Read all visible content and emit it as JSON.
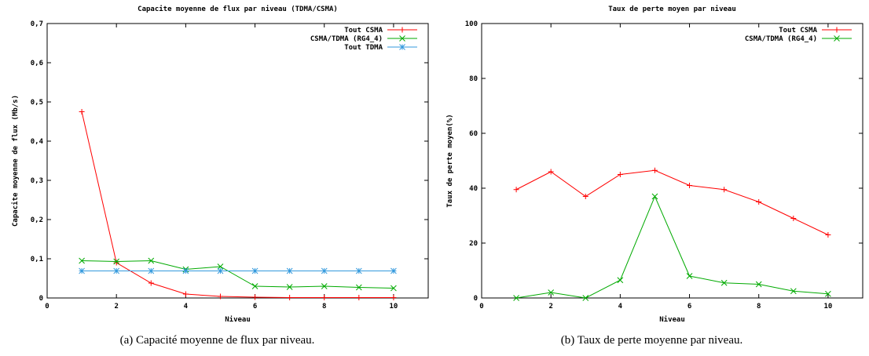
{
  "captions": {
    "a": "(a)  Capacité moyenne de flux par niveau.",
    "b": "(b)  Taux de perte moyenne par niveau."
  },
  "chart_data": [
    {
      "type": "line",
      "title": "Capacite moyenne de flux par niveau (TDMA/CSMA)",
      "xlabel": "Niveau",
      "ylabel": "Capacite moyenne de flux (Mb/s)",
      "xlim": [
        0,
        11
      ],
      "ylim": [
        0,
        0.7
      ],
      "xticks": [
        0,
        2,
        4,
        6,
        8,
        10
      ],
      "yticks": [
        0,
        0.1,
        0.2,
        0.3,
        0.4,
        0.5,
        0.6,
        0.7
      ],
      "ytick_labels": [
        "0",
        "0,1",
        "0,2",
        "0,3",
        "0,4",
        "0,5",
        "0,6",
        "0,7"
      ],
      "grid": false,
      "legend_position": "top-right",
      "series": [
        {
          "name": "Tout CSMA",
          "color": "#ff0000",
          "marker": "plus",
          "x": [
            1,
            2,
            3,
            4,
            5,
            6,
            7,
            8,
            9,
            10
          ],
          "y": [
            0.475,
            0.09,
            0.038,
            0.01,
            0.004,
            0.002,
            0.001,
            0.001,
            0.001,
            0.001
          ]
        },
        {
          "name": "CSMA/TDMA (RG4_4)",
          "color": "#00aa00",
          "marker": "x",
          "x": [
            1,
            2,
            3,
            4,
            5,
            6,
            7,
            8,
            9,
            10
          ],
          "y": [
            0.095,
            0.093,
            0.095,
            0.073,
            0.08,
            0.03,
            0.028,
            0.03,
            0.027,
            0.025
          ]
        },
        {
          "name": "Tout TDMA",
          "color": "#3399dd",
          "marker": "star",
          "x": [
            1,
            2,
            3,
            4,
            5,
            6,
            7,
            8,
            9,
            10
          ],
          "y": [
            0.069,
            0.069,
            0.069,
            0.069,
            0.069,
            0.069,
            0.069,
            0.069,
            0.069,
            0.069
          ]
        }
      ]
    },
    {
      "type": "line",
      "title": "Taux de perte moyen  par niveau",
      "xlabel": "Niveau",
      "ylabel": "Taux de perte moyen(%)",
      "xlim": [
        0,
        11
      ],
      "ylim": [
        0,
        100
      ],
      "xticks": [
        0,
        2,
        4,
        6,
        8,
        10
      ],
      "yticks": [
        0,
        20,
        40,
        60,
        80,
        100
      ],
      "ytick_labels": [
        "0",
        "20",
        "40",
        "60",
        "80",
        "100"
      ],
      "grid": false,
      "legend_position": "top-right",
      "series": [
        {
          "name": "Tout CSMA",
          "color": "#ff0000",
          "marker": "plus",
          "x": [
            1,
            2,
            3,
            4,
            5,
            6,
            7,
            8,
            9,
            10
          ],
          "y": [
            39.5,
            46,
            37,
            45,
            46.5,
            41,
            39.5,
            35,
            29,
            23
          ]
        },
        {
          "name": "CSMA/TDMA (RG4_4)",
          "color": "#00aa00",
          "marker": "x",
          "x": [
            1,
            2,
            3,
            4,
            5,
            6,
            7,
            8,
            9,
            10
          ],
          "y": [
            0,
            2,
            0,
            6.5,
            37,
            8,
            5.5,
            5,
            2.5,
            1.5
          ]
        }
      ]
    }
  ]
}
